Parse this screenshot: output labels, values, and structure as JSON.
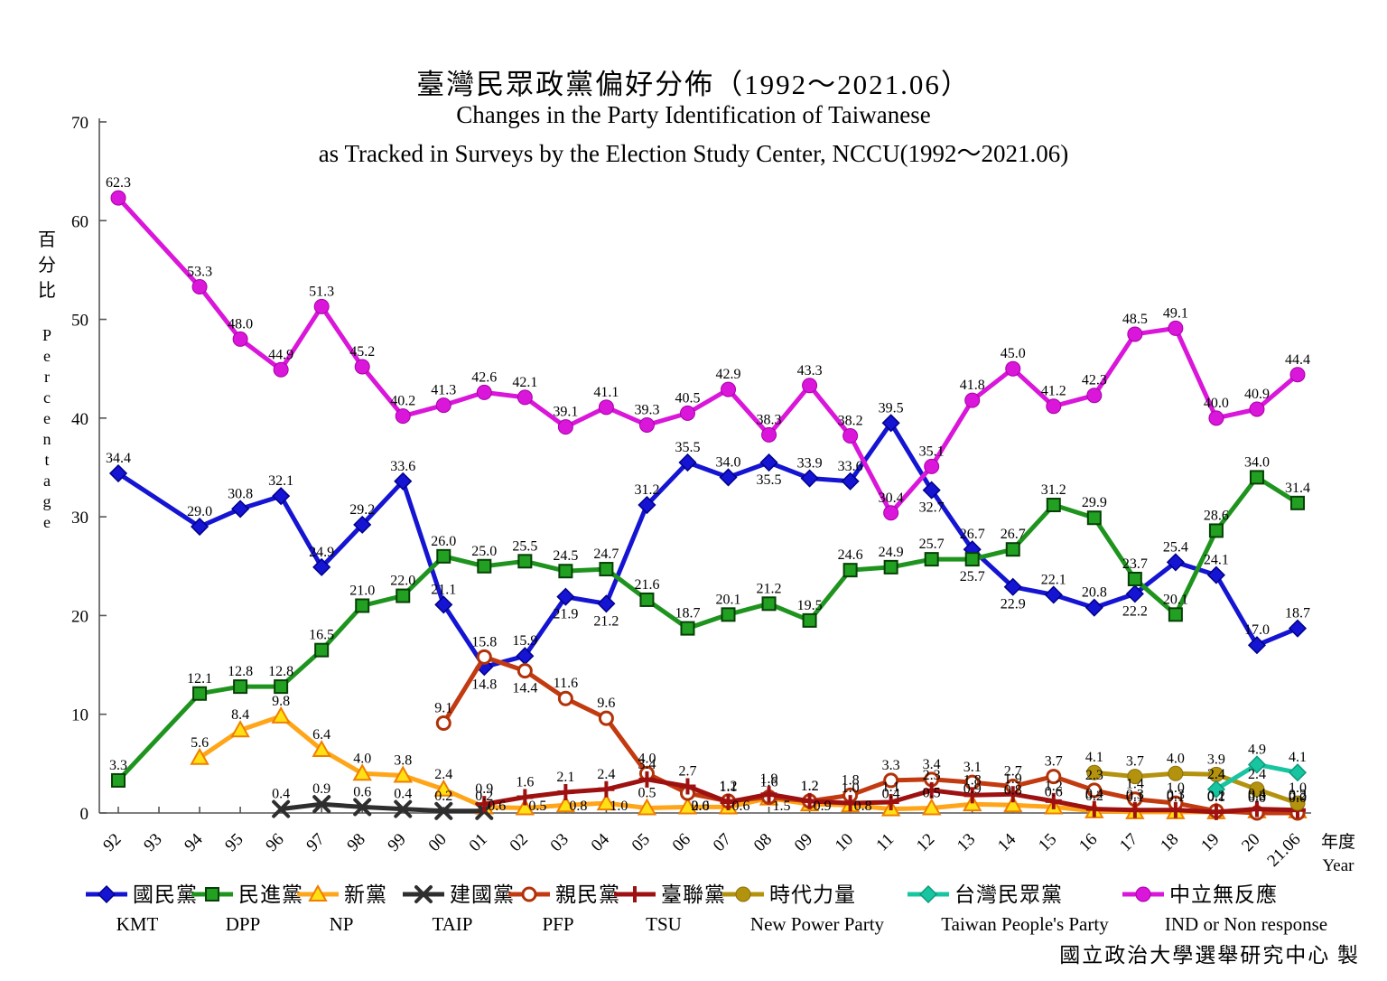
{
  "title_zh": "臺灣民眾政黨偏好分佈（1992～2021.06）",
  "subtitle_en_1": "Changes in the Party Identification of Taiwanese",
  "subtitle_en_2": "as Tracked in Surveys by the Election Study Center, NCCU(1992～2021.06)",
  "credit": "國立政治大學選舉研究中心  製",
  "chart_data": {
    "type": "line",
    "title": "臺灣民眾政黨偏好分佈（1992～2021.06）",
    "ylabel_zh": "百分比",
    "ylabel_en": "Percentage",
    "xlabel_zh": "年度",
    "xlabel_en": "Year",
    "ylim": [
      0,
      70
    ],
    "y_ticks": [
      0,
      10,
      20,
      30,
      40,
      50,
      60,
      70
    ],
    "grid": false,
    "legend_position": "bottom",
    "categories": [
      "92",
      "93",
      "94",
      "95",
      "96",
      "97",
      "98",
      "99",
      "00",
      "01",
      "02",
      "03",
      "04",
      "05",
      "06",
      "07",
      "08",
      "09",
      "10",
      "11",
      "12",
      "13",
      "14",
      "15",
      "16",
      "17",
      "18",
      "19",
      "20",
      "21.06"
    ],
    "series": [
      {
        "id": "kmt",
        "name_zh": "國民黨",
        "name_en": "KMT",
        "marker": "diamond",
        "color": "#1414D2",
        "marker_fill": "#1414D2",
        "marker_stroke": "#00008B",
        "values": [
          34.4,
          null,
          29.0,
          30.8,
          32.1,
          24.9,
          29.2,
          33.6,
          21.1,
          14.8,
          15.9,
          21.9,
          21.2,
          31.2,
          35.5,
          34.0,
          35.5,
          33.9,
          33.6,
          39.5,
          32.7,
          26.7,
          22.9,
          22.1,
          20.8,
          22.2,
          25.4,
          24.1,
          17.0,
          18.7
        ],
        "label_below": [
          9,
          11,
          12,
          16,
          20,
          22,
          25
        ]
      },
      {
        "id": "dpp",
        "name_zh": "民進黨",
        "name_en": "DPP",
        "marker": "square",
        "color": "#1E941E",
        "marker_fill": "#22A022",
        "marker_stroke": "#054005",
        "values": [
          3.3,
          null,
          12.1,
          12.8,
          12.8,
          16.5,
          21.0,
          22.0,
          26.0,
          25.0,
          25.5,
          24.5,
          24.7,
          21.6,
          18.7,
          20.1,
          21.2,
          19.5,
          24.6,
          24.9,
          25.7,
          25.7,
          26.7,
          31.2,
          29.9,
          23.7,
          20.1,
          28.6,
          34.0,
          31.4
        ],
        "label_below": [
          21
        ]
      },
      {
        "id": "np",
        "name_zh": "新黨",
        "name_en": "NP",
        "marker": "triangle",
        "color": "#FFA519",
        "marker_fill": "#FFE014",
        "marker_stroke": "#F07D00",
        "values": [
          null,
          null,
          5.6,
          8.4,
          9.8,
          6.4,
          4.0,
          3.8,
          2.4,
          0.6,
          0.5,
          0.8,
          1.0,
          0.5,
          0.6,
          0.6,
          1.5,
          0.9,
          0.8,
          0.4,
          0.5,
          0.9,
          0.8,
          0.6,
          0.2,
          0.1,
          0.1,
          0.1,
          0.2,
          0.2
        ],
        "label_below": [
          9,
          10,
          11,
          12,
          14,
          15,
          16,
          17,
          18
        ]
      },
      {
        "id": "taip",
        "name_zh": "建國黨",
        "name_en": "TAIP",
        "marker": "xmark",
        "color": "#2E2E2E",
        "marker_fill": "#2E2E2E",
        "marker_stroke": "#111111",
        "values": [
          null,
          null,
          null,
          null,
          0.4,
          0.9,
          0.6,
          0.4,
          0.2,
          0.2,
          null,
          null,
          null,
          null,
          null,
          null,
          null,
          null,
          null,
          null,
          null,
          null,
          null,
          null,
          null,
          null,
          null,
          null,
          null,
          null
        ],
        "label_below": []
      },
      {
        "id": "pfp",
        "name_zh": "親民黨",
        "name_en": "PFP",
        "marker": "circle-open",
        "color": "#C23A10",
        "marker_fill": "#FFFFFF",
        "marker_stroke": "#B03209",
        "values": [
          null,
          null,
          null,
          null,
          null,
          null,
          null,
          null,
          9.1,
          15.8,
          14.4,
          11.6,
          9.6,
          4.0,
          2.0,
          1.2,
          1.6,
          1.2,
          1.8,
          3.3,
          3.4,
          3.1,
          2.7,
          3.7,
          2.3,
          1.4,
          1.0,
          0.2,
          0.0,
          0.0
        ],
        "label_below": [
          10,
          14
        ]
      },
      {
        "id": "tsu",
        "name_zh": "臺聯黨",
        "name_en": "TSU",
        "marker": "plus",
        "color": "#9E1111",
        "marker_fill": "#9E1111",
        "marker_stroke": "#9E1111",
        "values": [
          null,
          null,
          null,
          null,
          null,
          null,
          null,
          null,
          null,
          0.9,
          1.6,
          2.1,
          2.4,
          3.4,
          2.7,
          1.1,
          1.9,
          1.2,
          1.0,
          1.1,
          2.3,
          1.8,
          1.9,
          1.2,
          0.4,
          0.3,
          0.3,
          0.1,
          0.4,
          0.3
        ],
        "label_below": []
      },
      {
        "id": "npp",
        "name_zh": "時代力量",
        "name_en": "New Power Party",
        "marker": "circle",
        "color": "#B3920E",
        "marker_fill": "#B3920E",
        "marker_stroke": "#8A7008",
        "values": [
          null,
          null,
          null,
          null,
          null,
          null,
          null,
          null,
          null,
          null,
          null,
          null,
          null,
          null,
          null,
          null,
          null,
          null,
          null,
          null,
          null,
          null,
          null,
          null,
          4.1,
          3.7,
          4.0,
          3.9,
          2.4,
          1.0
        ],
        "label_below": []
      },
      {
        "id": "tpp",
        "name_zh": "台灣民眾黨",
        "name_en": "Taiwan People's Party",
        "marker": "diamond",
        "color": "#17C5A0",
        "marker_fill": "#17C5A0",
        "marker_stroke": "#0E9A7C",
        "values": [
          null,
          null,
          null,
          null,
          null,
          null,
          null,
          null,
          null,
          null,
          null,
          null,
          null,
          null,
          null,
          null,
          null,
          null,
          null,
          null,
          null,
          null,
          null,
          null,
          null,
          null,
          null,
          2.4,
          4.9,
          4.1
        ],
        "label_below": []
      },
      {
        "id": "ind",
        "name_zh": "中立無反應",
        "name_en": "IND or Non response",
        "marker": "circle",
        "color": "#D916D9",
        "marker_fill": "#D916D9",
        "marker_stroke": "#A800A8",
        "values": [
          62.3,
          null,
          53.3,
          48.0,
          44.9,
          51.3,
          45.2,
          40.2,
          41.3,
          42.6,
          42.1,
          39.1,
          41.1,
          39.3,
          40.5,
          42.9,
          38.3,
          43.3,
          38.2,
          30.4,
          35.1,
          41.8,
          45.0,
          41.2,
          42.3,
          48.5,
          49.1,
          40.0,
          40.9,
          44.4
        ],
        "label_below": []
      }
    ]
  }
}
